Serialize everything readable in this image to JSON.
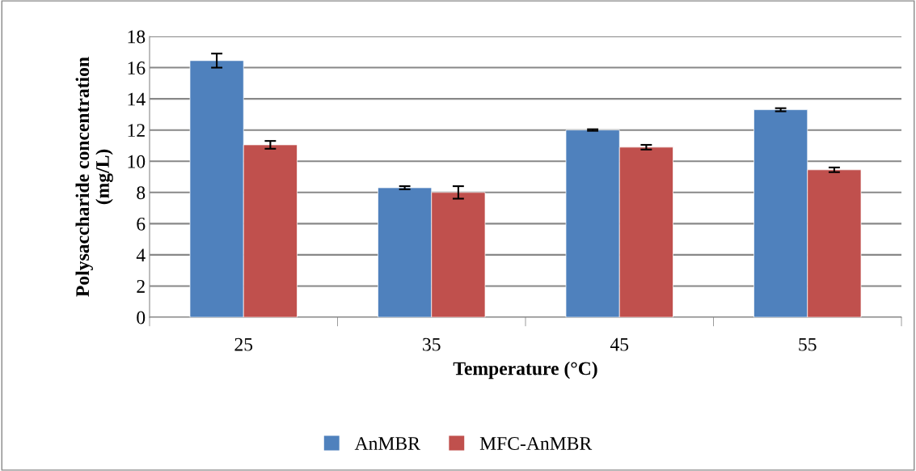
{
  "chart_data": {
    "type": "bar",
    "xlabel": "Temperature (°C)",
    "ylabel": "Polysaccharide concentration\n(mg/L)",
    "categories": [
      "25",
      "35",
      "45",
      "55"
    ],
    "series": [
      {
        "name": "AnMBR",
        "color": "#4f81bd",
        "values": [
          16.45,
          8.3,
          12.0,
          13.3
        ],
        "errors": [
          0.45,
          0.1,
          0.05,
          0.1
        ]
      },
      {
        "name": "MFC-AnMBR",
        "color": "#c0504d",
        "values": [
          11.05,
          8.0,
          10.9,
          9.45
        ],
        "errors": [
          0.25,
          0.4,
          0.15,
          0.15
        ]
      }
    ],
    "ylim": [
      0,
      18
    ],
    "yticks": [
      0,
      2,
      4,
      6,
      8,
      10,
      12,
      14,
      16,
      18
    ],
    "grid": "y",
    "legend": "bottom"
  }
}
